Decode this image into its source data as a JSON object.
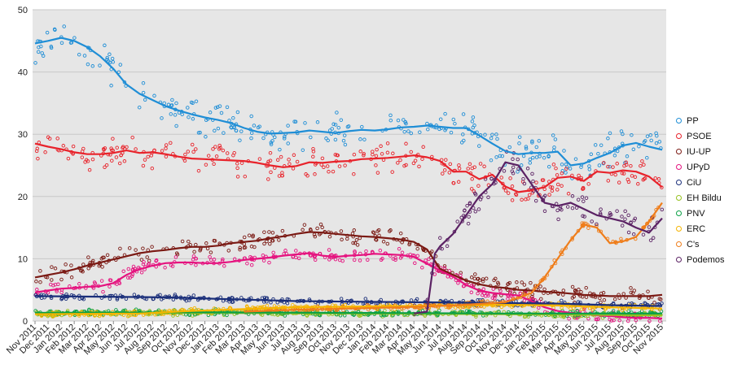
{
  "chart_data": {
    "type": "scatter",
    "title": "",
    "xlabel": "",
    "ylabel": "",
    "ylim": [
      0,
      50
    ],
    "yticks": [
      0,
      10,
      20,
      30,
      40,
      50
    ],
    "grid": true,
    "legend_position": "right",
    "x_start": "Nov 2011",
    "x_end": "Dec 2015",
    "categories": [
      "Nov 2011",
      "Dec 2011",
      "Jan 2012",
      "Feb 2012",
      "Mar 2012",
      "Apr 2012",
      "May 2012",
      "Jun 2012",
      "Jul 2012",
      "Aug 2012",
      "Sep 2012",
      "Oct 2012",
      "Nov 2012",
      "Dec 2012",
      "Jan 2013",
      "Feb 2013",
      "Mar 2013",
      "Apr 2013",
      "May 2013",
      "Jun 2013",
      "Jul 2013",
      "Aug 2013",
      "Sep 2013",
      "Oct 2013",
      "Nov 2013",
      "Dec 2013",
      "Jan 2014",
      "Feb 2014",
      "Mar 2014",
      "Apr 2014",
      "May 2014",
      "Jun 2014",
      "Jul 2014",
      "Aug 2014",
      "Sep 2014",
      "Oct 2014",
      "Nov 2014",
      "Dec 2014",
      "Jan 2015",
      "Feb 2015",
      "Mar 2015",
      "Apr 2015",
      "May 2015",
      "Jun 2015",
      "Jul 2015",
      "Aug 2015",
      "Sep 2015",
      "Oct 2015",
      "Nov 2015"
    ],
    "series": [
      {
        "name": "PP",
        "color": "#1f8ed6",
        "trend": [
          [
            0,
            44.6
          ],
          [
            1,
            45
          ],
          [
            2,
            45.5
          ],
          [
            3,
            45
          ],
          [
            4,
            44
          ],
          [
            5,
            42.5
          ],
          [
            6,
            40.5
          ],
          [
            7,
            38
          ],
          [
            8,
            36.5
          ],
          [
            9,
            35.5
          ],
          [
            10,
            34.5
          ],
          [
            11,
            33.8
          ],
          [
            12,
            33.2
          ],
          [
            13,
            32.7
          ],
          [
            14,
            32.3
          ],
          [
            15,
            31.8
          ],
          [
            16,
            31
          ],
          [
            17,
            30.4
          ],
          [
            18,
            30.1
          ],
          [
            19,
            30.2
          ],
          [
            20,
            30.3
          ],
          [
            21,
            30.6
          ],
          [
            22,
            30.4
          ],
          [
            23,
            30.2
          ],
          [
            24,
            30.5
          ],
          [
            25,
            30.7
          ],
          [
            26,
            30.6
          ],
          [
            27,
            30.8
          ],
          [
            28,
            31.1
          ],
          [
            29,
            31.2
          ],
          [
            30,
            31.4
          ],
          [
            31,
            31.2
          ],
          [
            32,
            31
          ],
          [
            33,
            31
          ],
          [
            34,
            29.8
          ],
          [
            35,
            28.5
          ],
          [
            36,
            27.3
          ],
          [
            37,
            26.8
          ],
          [
            38,
            27
          ],
          [
            39,
            27
          ],
          [
            40,
            27.2
          ],
          [
            41,
            25
          ],
          [
            42,
            25.3
          ],
          [
            43,
            26.2
          ],
          [
            44,
            27
          ],
          [
            45,
            28.2
          ],
          [
            46,
            28.6
          ],
          [
            47,
            28
          ],
          [
            48,
            27.5
          ]
        ]
      },
      {
        "name": "PSOE",
        "color": "#e8232b",
        "trend": [
          [
            0,
            28.5
          ],
          [
            1,
            28
          ],
          [
            2,
            27.6
          ],
          [
            3,
            27.1
          ],
          [
            4,
            26.8
          ],
          [
            5,
            26.8
          ],
          [
            6,
            27
          ],
          [
            7,
            27.4
          ],
          [
            8,
            27
          ],
          [
            9,
            27.1
          ],
          [
            10,
            26.8
          ],
          [
            11,
            26.4
          ],
          [
            12,
            26.1
          ],
          [
            13,
            26
          ],
          [
            14,
            25.9
          ],
          [
            15,
            25.8
          ],
          [
            16,
            25.7
          ],
          [
            17,
            25.4
          ],
          [
            18,
            25
          ],
          [
            19,
            24.7
          ],
          [
            20,
            24.9
          ],
          [
            21,
            25.5
          ],
          [
            22,
            25.4
          ],
          [
            23,
            25.6
          ],
          [
            24,
            25.7
          ],
          [
            25,
            26
          ],
          [
            26,
            26.1
          ],
          [
            27,
            26.2
          ],
          [
            28,
            26.4
          ],
          [
            29,
            26.6
          ],
          [
            30,
            26.3
          ],
          [
            31,
            25.7
          ],
          [
            32,
            24
          ],
          [
            33,
            24
          ],
          [
            34,
            22.8
          ],
          [
            35,
            23.5
          ],
          [
            36,
            21.6
          ],
          [
            37,
            20.7
          ],
          [
            38,
            21
          ],
          [
            39,
            21.5
          ],
          [
            40,
            23
          ],
          [
            41,
            23.2
          ],
          [
            42,
            22.5
          ],
          [
            43,
            24
          ],
          [
            44,
            23.8
          ],
          [
            45,
            24.2
          ],
          [
            46,
            24
          ],
          [
            47,
            23.2
          ],
          [
            48,
            21.5
          ]
        ]
      },
      {
        "name": "IU-UP",
        "color": "#7b1a14",
        "trend": [
          [
            0,
            7
          ],
          [
            1,
            7.4
          ],
          [
            2,
            7.8
          ],
          [
            3,
            8.3
          ],
          [
            4,
            8.9
          ],
          [
            5,
            9.4
          ],
          [
            6,
            9.9
          ],
          [
            7,
            10.4
          ],
          [
            8,
            10.9
          ],
          [
            9,
            11.2
          ],
          [
            10,
            11.4
          ],
          [
            11,
            11.7
          ],
          [
            12,
            11.9
          ],
          [
            13,
            11.9
          ],
          [
            14,
            12.1
          ],
          [
            15,
            12.5
          ],
          [
            16,
            12.7
          ],
          [
            17,
            12.9
          ],
          [
            18,
            13.3
          ],
          [
            19,
            13.6
          ],
          [
            20,
            14
          ],
          [
            21,
            14.3
          ],
          [
            22,
            14.2
          ],
          [
            23,
            14
          ],
          [
            24,
            13.8
          ],
          [
            25,
            13.6
          ],
          [
            26,
            13.5
          ],
          [
            27,
            13.3
          ],
          [
            28,
            13.1
          ],
          [
            29,
            12.7
          ],
          [
            30,
            11.5
          ],
          [
            31,
            8.4
          ],
          [
            32,
            7.4
          ],
          [
            33,
            6.5
          ],
          [
            34,
            5.9
          ],
          [
            35,
            5.5
          ],
          [
            36,
            5.3
          ],
          [
            37,
            5
          ],
          [
            38,
            4.9
          ],
          [
            39,
            4.7
          ],
          [
            40,
            4.6
          ],
          [
            41,
            4.4
          ],
          [
            42,
            4.2
          ],
          [
            43,
            4.1
          ],
          [
            44,
            4
          ],
          [
            45,
            4
          ],
          [
            46,
            4
          ],
          [
            47,
            4
          ],
          [
            48,
            4.2
          ]
        ]
      },
      {
        "name": "UPyD",
        "color": "#e5137f",
        "trend": [
          [
            0,
            4.6
          ],
          [
            1,
            4.9
          ],
          [
            2,
            5.2
          ],
          [
            3,
            5.3
          ],
          [
            4,
            5.5
          ],
          [
            5,
            5.6
          ],
          [
            6,
            6.1
          ],
          [
            7,
            7.4
          ],
          [
            8,
            8.3
          ],
          [
            9,
            8.9
          ],
          [
            10,
            9.3
          ],
          [
            11,
            9.4
          ],
          [
            12,
            9.4
          ],
          [
            13,
            9.3
          ],
          [
            14,
            9.3
          ],
          [
            15,
            9.5
          ],
          [
            16,
            9.8
          ],
          [
            17,
            10
          ],
          [
            18,
            10.2
          ],
          [
            19,
            10.5
          ],
          [
            20,
            10.7
          ],
          [
            21,
            10.9
          ],
          [
            22,
            10.5
          ],
          [
            23,
            10.3
          ],
          [
            24,
            10.5
          ],
          [
            25,
            10.6
          ],
          [
            26,
            10.8
          ],
          [
            27,
            10.7
          ],
          [
            28,
            10.6
          ],
          [
            29,
            10.3
          ],
          [
            30,
            9.2
          ],
          [
            31,
            8.1
          ],
          [
            32,
            7.1
          ],
          [
            33,
            5.8
          ],
          [
            34,
            4.9
          ],
          [
            35,
            4.5
          ],
          [
            36,
            4.3
          ],
          [
            37,
            4.1
          ],
          [
            38,
            3.2
          ],
          [
            39,
            2.2
          ],
          [
            40,
            1.6
          ],
          [
            41,
            1.3
          ],
          [
            42,
            1.1
          ],
          [
            43,
            0.9
          ],
          [
            44,
            0.8
          ],
          [
            45,
            0.6
          ],
          [
            46,
            0.5
          ],
          [
            47,
            0.5
          ],
          [
            48,
            0.4
          ]
        ]
      },
      {
        "name": "CiU",
        "color": "#1b2f7a",
        "trend": [
          [
            0,
            4
          ],
          [
            5,
            3.9
          ],
          [
            10,
            3.8
          ],
          [
            15,
            3.5
          ],
          [
            20,
            3.2
          ],
          [
            25,
            3.1
          ],
          [
            30,
            3
          ],
          [
            35,
            2.9
          ],
          [
            40,
            2.8
          ],
          [
            45,
            2.5
          ],
          [
            48,
            2.4
          ]
        ]
      },
      {
        "name": "EH Bildu",
        "color": "#96c11f",
        "trend": [
          [
            0,
            1.2
          ],
          [
            12,
            1.3
          ],
          [
            24,
            1.2
          ],
          [
            36,
            1.1
          ],
          [
            48,
            0.9
          ]
        ]
      },
      {
        "name": "PNV",
        "color": "#0aa045",
        "trend": [
          [
            0,
            1.3
          ],
          [
            12,
            1.4
          ],
          [
            24,
            1.3
          ],
          [
            36,
            1.2
          ],
          [
            48,
            1.2
          ]
        ]
      },
      {
        "name": "ERC",
        "color": "#f5b400",
        "trend": [
          [
            0,
            1.1
          ],
          [
            8,
            1.2
          ],
          [
            12,
            1.6
          ],
          [
            16,
            1.9
          ],
          [
            20,
            2.2
          ],
          [
            24,
            2.3
          ],
          [
            28,
            2.4
          ],
          [
            32,
            2.5
          ],
          [
            36,
            2.6
          ],
          [
            40,
            2.5
          ],
          [
            44,
            2.2
          ],
          [
            48,
            2
          ]
        ]
      },
      {
        "name": "C's",
        "color": "#ef7d1a",
        "trend": [
          [
            16,
            1.5
          ],
          [
            20,
            1.8
          ],
          [
            24,
            2
          ],
          [
            28,
            2.2
          ],
          [
            32,
            2.5
          ],
          [
            36,
            3
          ],
          [
            38,
            4.5
          ],
          [
            39,
            7
          ],
          [
            40,
            10
          ],
          [
            41,
            13
          ],
          [
            42,
            15.5
          ],
          [
            43,
            15
          ],
          [
            44,
            12.5
          ],
          [
            45,
            12.8
          ],
          [
            46,
            13.5
          ],
          [
            47,
            16
          ],
          [
            48,
            19
          ]
        ]
      },
      {
        "name": "Podemos",
        "color": "#5b2264",
        "trend": [
          [
            29,
            1.2
          ],
          [
            30,
            1.5
          ],
          [
            30.6,
            10.8
          ],
          [
            31,
            12
          ],
          [
            32,
            14
          ],
          [
            33,
            17
          ],
          [
            34,
            20
          ],
          [
            35,
            22
          ],
          [
            36,
            25.5
          ],
          [
            37,
            25
          ],
          [
            38,
            22
          ],
          [
            39,
            19
          ],
          [
            40,
            18.5
          ],
          [
            41,
            19
          ],
          [
            42,
            18
          ],
          [
            43,
            17
          ],
          [
            44,
            16.5
          ],
          [
            45,
            16
          ],
          [
            46,
            15
          ],
          [
            47,
            14.2
          ],
          [
            48,
            16.5
          ]
        ]
      }
    ]
  }
}
